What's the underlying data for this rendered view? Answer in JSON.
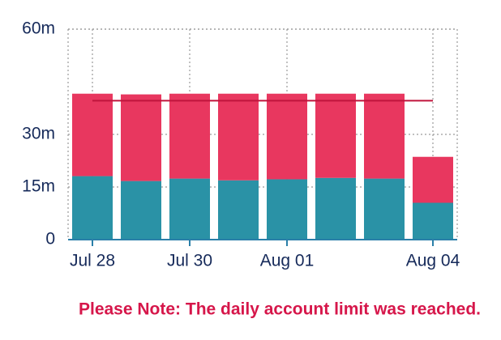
{
  "chart_data": {
    "type": "stacked_bar",
    "categories": [
      "Jul 28",
      null,
      "Jul 30",
      null,
      "Aug 01",
      null,
      null,
      "Aug 04"
    ],
    "series": [
      {
        "color": "#2a92a6",
        "values": [
          18.1,
          16.7,
          17.4,
          16.9,
          17.2,
          17.6,
          17.4,
          10.5
        ]
      },
      {
        "color": "#e8375f",
        "values": [
          23.5,
          24.7,
          24.2,
          24.7,
          24.4,
          24.0,
          24.2,
          13.1
        ]
      }
    ],
    "limit": 39.6,
    "limit_color": "#c0143c",
    "ylim": [
      0,
      60
    ],
    "yticks": [
      {
        "value": 0,
        "label": "0"
      },
      {
        "value": 15,
        "label": "15m"
      },
      {
        "value": 30,
        "label": "30m"
      },
      {
        "value": 60,
        "label": "60m"
      }
    ],
    "grid": true,
    "note": "Please Note: The daily account limit was reached."
  }
}
